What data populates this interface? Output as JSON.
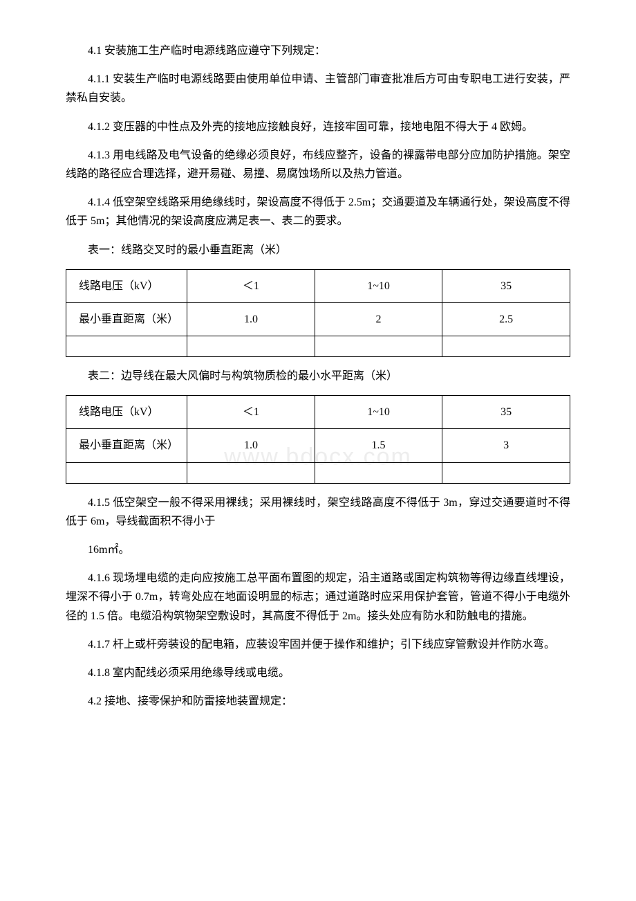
{
  "p1": "4.1 安装施工生产临时电源线路应遵守下列规定：",
  "p2": "4.1.1 安装生产临时电源线路要由使用单位申请、主管部门审查批准后方可由专职电工进行安装，严禁私自安装。",
  "p3": "4.1.2 变压器的中性点及外壳的接地应接触良好，连接牢固可靠，接地电阻不得大于 4 欧姆。",
  "p4": "4.1.3 用电线路及电气设备的绝缘必须良好，布线应整齐，设备的裸露带电部分应加防护措施。架空线路的路径应合理选择，避开易碰、易撞、易腐蚀场所以及热力管道。",
  "p5": "4.1.4 低空架空线路采用绝缘线时，架设高度不得低于 2.5m；交通要道及车辆通行处，架设高度不得低于 5m；其他情况的架设高度应满足表一、表二的要求。",
  "t1_caption": "表一：线路交叉时的最小垂直距离（米）",
  "t1": {
    "r1c1": "线路电压（kV）",
    "r1c2": "＜1",
    "r1c3": "1~10",
    "r1c4": "35",
    "r2c1": "最小垂直距离（米）",
    "r2c2": "1.0",
    "r2c3": "2",
    "r2c4": "2.5"
  },
  "t2_caption": "表二：边导线在最大风偏时与构筑物质检的最小水平距离（米）",
  "t2": {
    "r1c1": "线路电压（kV）",
    "r1c2": "＜1",
    "r1c3": "1~10",
    "r1c4": "35",
    "r2c1": "最小垂直距离（米）",
    "r2c2": "1.0",
    "r2c3": "1.5",
    "r2c4": "3"
  },
  "p6": "4.1.5 低空架空一般不得采用裸线；采用裸线时，架空线路高度不得低于 3m，穿过交通要道时不得低于 6m，导线截面积不得小于",
  "p7": "16m㎡。",
  "p8": "4.1.6 现场埋电缆的走向应按施工总平面布置图的规定，沿主道路或固定构筑物等得边缘直线埋设，埋深不得小于 0.7m，转弯处应在地面设明显的标志；通过道路时应采用保护套管，管道不得小于电缆外径的 1.5 倍。电缆沿构筑物架空敷设时，其高度不得低于 2m。接头处应有防水和防触电的措施。",
  "p9": "4.1.7 杆上或杆旁装设的配电箱，应装设牢固并便于操作和维护；引下线应穿管敷设并作防水弯。",
  "p10": "4.1.8 室内配线必须采用绝缘导线或电缆。",
  "p11": "4.2 接地、接零保护和防雷接地装置规定：",
  "watermark": "www.bdocx.com"
}
